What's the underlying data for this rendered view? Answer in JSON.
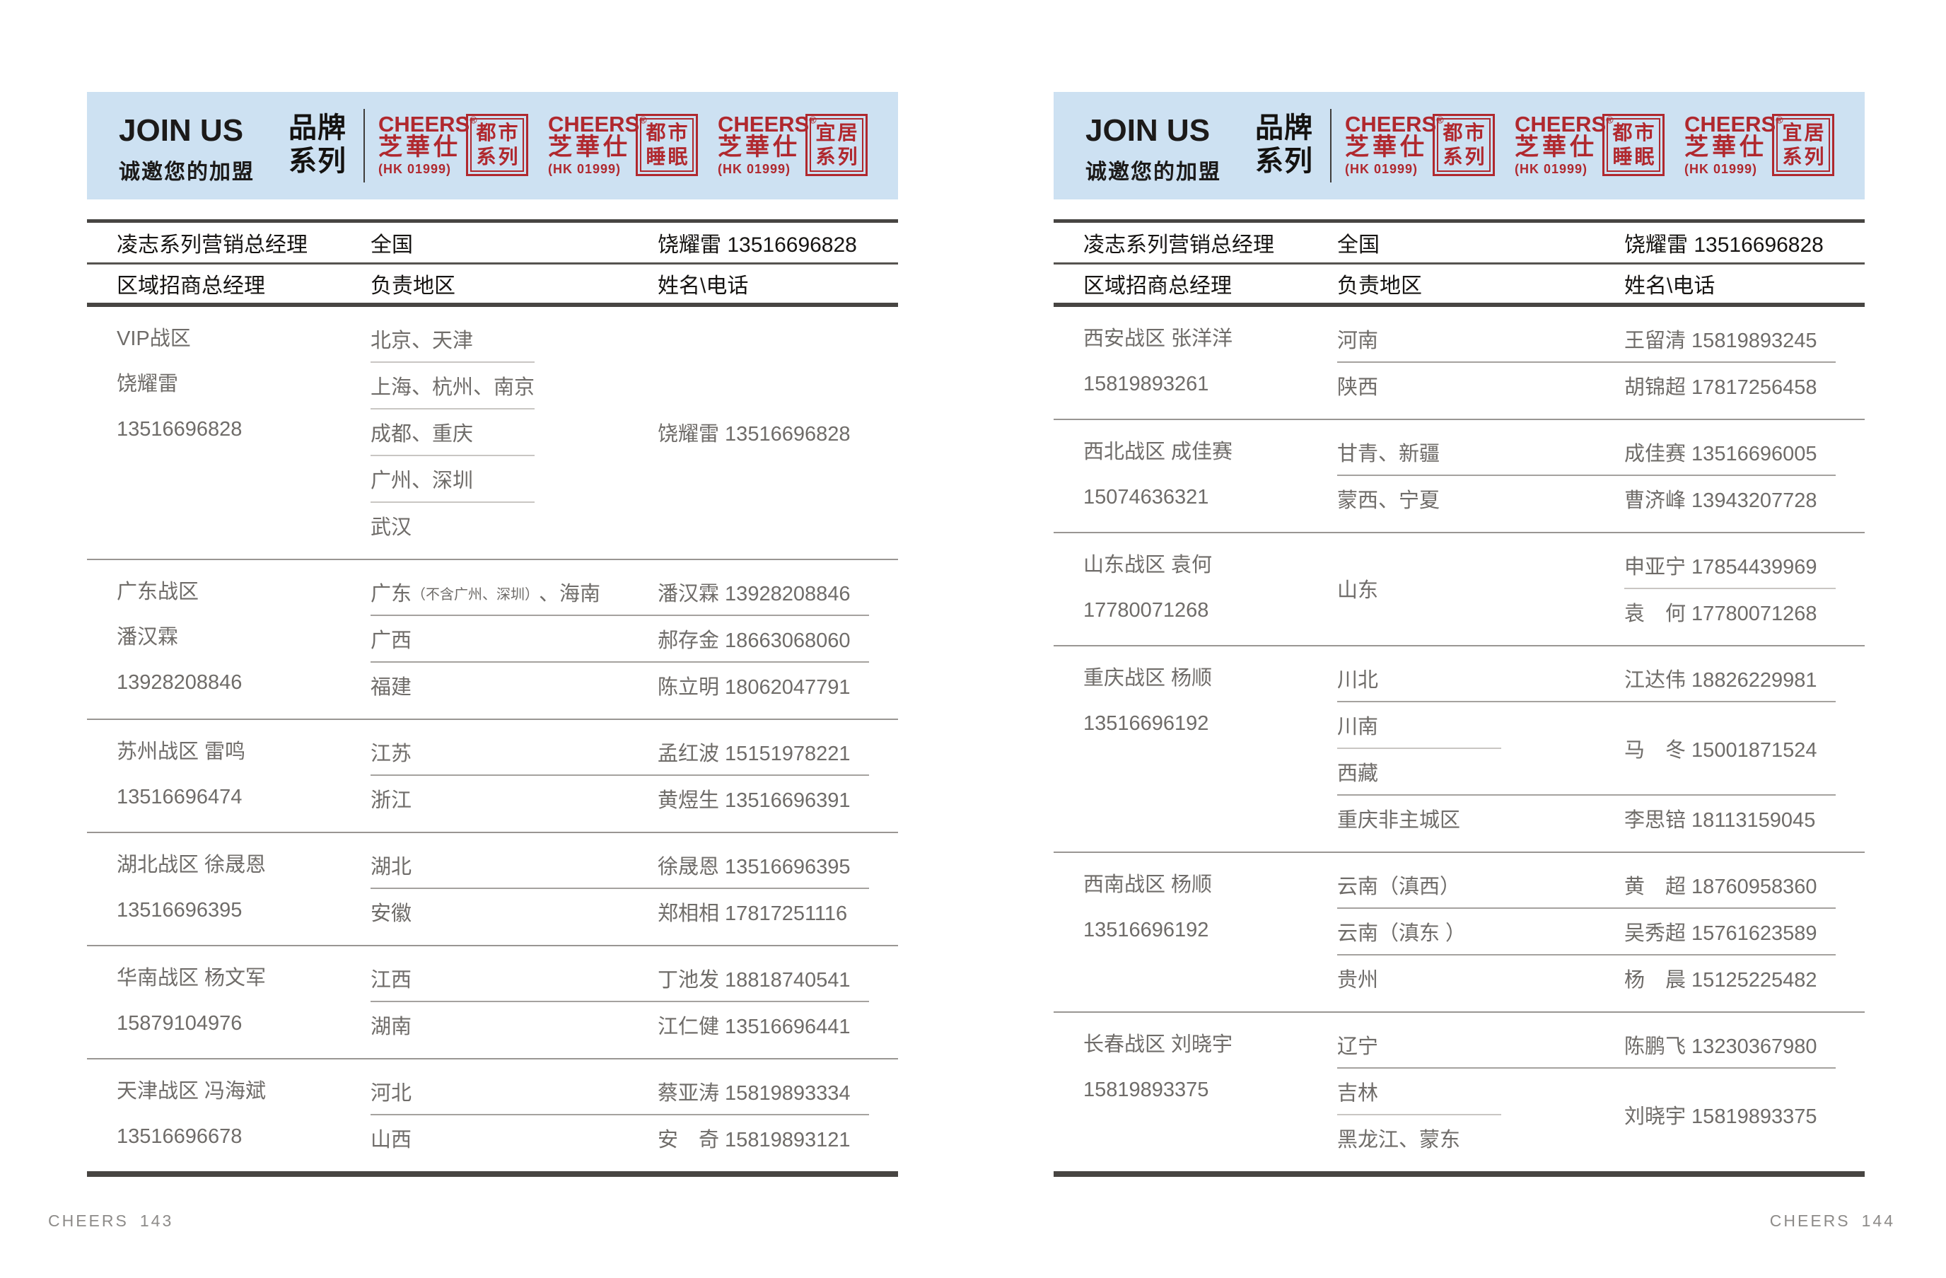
{
  "colors": {
    "band_blue": "#cde1f2",
    "logo_red": "#b0282e",
    "body_text_gray": "#6f6c69",
    "header_text_black": "#161412",
    "rule_dark": "#474542",
    "rule_light": "#c9c6c3"
  },
  "pages": [
    {
      "side": "left",
      "footer": {
        "brand": "CHEERS",
        "page_number": "143"
      },
      "header": {
        "join_us": "JOIN US",
        "join_us_sub": "诚邀您的加盟",
        "series_label_line1": "品牌",
        "series_label_line2": "系列",
        "logos": [
          {
            "brand": "CHEERS",
            "reg": "®",
            "brand_cn": "芝華仕",
            "stock": "(HK 01999)",
            "box_line1": "都市",
            "box_line2": "系列"
          },
          {
            "brand": "CHEERS",
            "reg": "®",
            "brand_cn": "芝華仕",
            "stock": "(HK 01999)",
            "box_line1": "都市",
            "box_line2": "睡眠"
          },
          {
            "brand": "CHEERS",
            "reg": "®",
            "brand_cn": "芝華仕",
            "stock": "(HK 01999)",
            "box_line1": "宜居",
            "box_line2": "系列"
          }
        ]
      },
      "table": {
        "top_row": {
          "col1": "凌志系列营销总经理",
          "col2": "全国",
          "col3": "饶耀雷 13516696828"
        },
        "head_row": {
          "col1": "区域招商总经理",
          "col2": "负责地区",
          "col3": "姓名\\电话"
        },
        "zones": [
          {
            "info": [
              "VIP战区",
              "饶耀雷",
              "13516696828"
            ],
            "blocks": [
              {
                "regions": [
                  "北京、天津",
                  "上海、杭州、南京",
                  "成都、重庆",
                  "广州、深圳",
                  "武汉"
                ],
                "contacts": [
                  "饶耀雷 13516696828"
                ]
              }
            ]
          },
          {
            "info": [
              "广东战区",
              "潘汉霖",
              "13928208846"
            ],
            "blocks": [
              {
                "regions": [
                  [
                    {
                      "t": "广东"
                    },
                    {
                      "t": "（不含广州、深圳）",
                      "small": true
                    },
                    {
                      "t": "、海南"
                    }
                  ]
                ],
                "contacts": [
                  "潘汉霖 13928208846"
                ]
              },
              {
                "regions": [
                  "广西"
                ],
                "contacts": [
                  "郝存金 18663068060"
                ]
              },
              {
                "regions": [
                  "福建"
                ],
                "contacts": [
                  "陈立明 18062047791"
                ]
              }
            ]
          },
          {
            "info": [
              "苏州战区 雷鸣",
              "13516696474"
            ],
            "blocks": [
              {
                "regions": [
                  "江苏"
                ],
                "contacts": [
                  "孟红波 15151978221"
                ]
              },
              {
                "regions": [
                  "浙江"
                ],
                "contacts": [
                  "黄煜生 13516696391"
                ]
              }
            ]
          },
          {
            "info": [
              "湖北战区 徐晟恩",
              "13516696395"
            ],
            "blocks": [
              {
                "regions": [
                  "湖北"
                ],
                "contacts": [
                  "徐晟恩 13516696395"
                ]
              },
              {
                "regions": [
                  "安徽"
                ],
                "contacts": [
                  "郑相相 17817251116"
                ]
              }
            ]
          },
          {
            "info": [
              "华南战区 杨文军",
              "15879104976"
            ],
            "blocks": [
              {
                "regions": [
                  "江西"
                ],
                "contacts": [
                  "丁池发 18818740541"
                ]
              },
              {
                "regions": [
                  "湖南"
                ],
                "contacts": [
                  "江仁健 13516696441"
                ]
              }
            ]
          },
          {
            "info": [
              "天津战区 冯海斌",
              "13516696678"
            ],
            "blocks": [
              {
                "regions": [
                  "河北"
                ],
                "contacts": [
                  "蔡亚涛 15819893334"
                ]
              },
              {
                "regions": [
                  "山西"
                ],
                "contacts": [
                  "安　奇 15819893121"
                ]
              }
            ]
          }
        ]
      }
    },
    {
      "side": "right",
      "footer": {
        "brand": "CHEERS",
        "page_number": "144"
      },
      "header": {
        "join_us": "JOIN US",
        "join_us_sub": "诚邀您的加盟",
        "series_label_line1": "品牌",
        "series_label_line2": "系列",
        "logos": [
          {
            "brand": "CHEERS",
            "reg": "®",
            "brand_cn": "芝華仕",
            "stock": "(HK 01999)",
            "box_line1": "都市",
            "box_line2": "系列"
          },
          {
            "brand": "CHEERS",
            "reg": "®",
            "brand_cn": "芝華仕",
            "stock": "(HK 01999)",
            "box_line1": "都市",
            "box_line2": "睡眠"
          },
          {
            "brand": "CHEERS",
            "reg": "®",
            "brand_cn": "芝華仕",
            "stock": "(HK 01999)",
            "box_line1": "宜居",
            "box_line2": "系列"
          }
        ]
      },
      "table": {
        "top_row": {
          "col1": "凌志系列营销总经理",
          "col2": "全国",
          "col3": "饶耀雷 13516696828"
        },
        "head_row": {
          "col1": "区域招商总经理",
          "col2": "负责地区",
          "col3": "姓名\\电话"
        },
        "zones": [
          {
            "info": [
              "西安战区 张洋洋",
              "15819893261"
            ],
            "blocks": [
              {
                "regions": [
                  "河南"
                ],
                "contacts": [
                  "王留清 15819893245"
                ]
              },
              {
                "regions": [
                  "陕西"
                ],
                "contacts": [
                  "胡锦超 17817256458"
                ]
              }
            ]
          },
          {
            "info": [
              "西北战区 成佳赛",
              "15074636321"
            ],
            "blocks": [
              {
                "regions": [
                  "甘青、新疆"
                ],
                "contacts": [
                  "成佳赛 13516696005"
                ]
              },
              {
                "regions": [
                  "蒙西、宁夏"
                ],
                "contacts": [
                  "曹济峰 13943207728"
                ]
              }
            ]
          },
          {
            "info": [
              "山东战区 袁何",
              "17780071268"
            ],
            "blocks": [
              {
                "regions": [
                  "山东"
                ],
                "contacts": [
                  "申亚宁 17854439969",
                  "袁　何 17780071268"
                ]
              }
            ]
          },
          {
            "info": [
              "重庆战区 杨顺",
              "13516696192"
            ],
            "blocks": [
              {
                "regions": [
                  "川北"
                ],
                "contacts": [
                  "江达伟 18826229981"
                ]
              },
              {
                "regions": [
                  "川南",
                  "西藏"
                ],
                "contacts": [
                  "马　冬 15001871524"
                ]
              },
              {
                "regions": [
                  "重庆非主城区"
                ],
                "contacts": [
                  "李思锫 18113159045"
                ]
              }
            ]
          },
          {
            "info": [
              "西南战区 杨顺",
              "13516696192"
            ],
            "blocks": [
              {
                "regions": [
                  "云南（滇西）"
                ],
                "contacts": [
                  "黄　超 18760958360"
                ]
              },
              {
                "regions": [
                  "云南（滇东 ）"
                ],
                "contacts": [
                  "吴秀超 15761623589"
                ]
              },
              {
                "regions": [
                  "贵州"
                ],
                "contacts": [
                  "杨　晨  15125225482"
                ]
              }
            ]
          },
          {
            "info": [
              "长春战区 刘晓宇",
              "15819893375"
            ],
            "blocks": [
              {
                "regions": [
                  "辽宁"
                ],
                "contacts": [
                  "陈鹏飞 13230367980"
                ]
              },
              {
                "regions": [
                  "吉林",
                  "黑龙江、蒙东"
                ],
                "contacts": [
                  "刘晓宇 15819893375"
                ]
              }
            ]
          }
        ]
      }
    }
  ]
}
